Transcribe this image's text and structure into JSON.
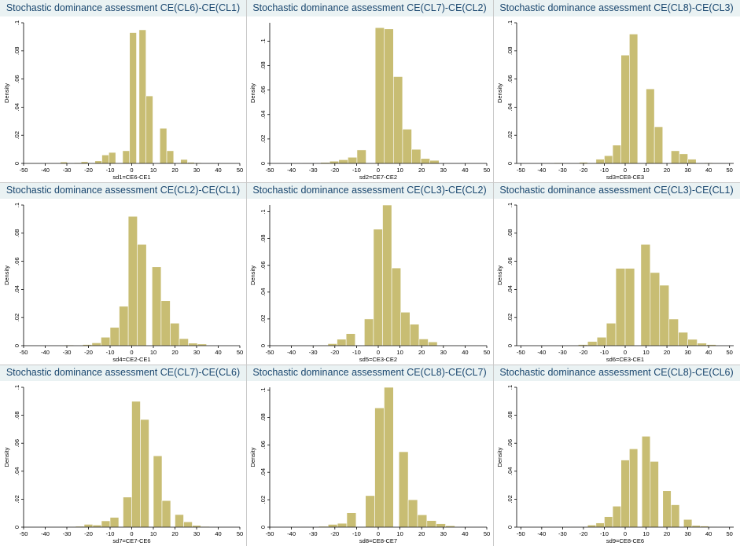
{
  "colors": {
    "bar": "#c8bd73",
    "title_band": "#eaf2f3",
    "title_text": "#1a476f"
  },
  "chart_data": [
    {
      "type": "bar",
      "title": "Stochastic dominance assessment CE(CL6)-CE(CL1)",
      "xlabel": "sd1=CE6-CE1",
      "ylabel": "Density",
      "xticks": [
        "-50",
        "-40",
        "-30",
        "-20",
        "-10",
        "0",
        "10",
        "20",
        "30",
        "40",
        "50"
      ],
      "yticks": [
        "0",
        ".02",
        ".04",
        ".06",
        ".08",
        ".1"
      ],
      "xlim": [
        -50,
        50
      ],
      "ylim": [
        0,
        0.1
      ],
      "bin_width": 3.2,
      "bins": [
        [
          -49,
          0.0002
        ],
        [
          -45.8,
          0.0002
        ],
        [
          -42.6,
          0
        ],
        [
          -39.4,
          0.0002
        ],
        [
          -36.2,
          0
        ],
        [
          -33,
          0.001
        ],
        [
          -29.8,
          0
        ],
        [
          -26.6,
          0.0005
        ],
        [
          -23.4,
          0.0012
        ],
        [
          -20.2,
          0
        ],
        [
          -17,
          0.0018
        ],
        [
          -13.8,
          0.006
        ],
        [
          -10.6,
          0.0078
        ],
        [
          -7.4,
          0
        ],
        [
          -4.2,
          0.009
        ],
        [
          -1,
          0.093
        ],
        [
          2.2,
          0
        ],
        [
          3.4,
          0.095
        ],
        [
          6.6,
          0.048
        ],
        [
          9.8,
          0
        ],
        [
          13,
          0.025
        ],
        [
          16.2,
          0.009
        ],
        [
          19.4,
          0
        ],
        [
          22.6,
          0.0028
        ],
        [
          25.8,
          0.0008
        ],
        [
          29,
          0.0005
        ],
        [
          32.2,
          0
        ],
        [
          35.4,
          0.0003
        ],
        [
          38.6,
          0
        ],
        [
          41.8,
          0.0002
        ],
        [
          45,
          0
        ]
      ]
    },
    {
      "type": "bar",
      "title": "Stochastic dominance assessment CE(CL7)-CE(CL2)",
      "xlabel": "sd2=CE7-CE2",
      "ylabel": "Density",
      "xticks": [
        "-50",
        "-40",
        "-30",
        "-20",
        "-10",
        "0",
        "10",
        "20",
        "30",
        "40",
        "50"
      ],
      "yticks": [
        "0",
        ".02",
        ".04",
        ".06",
        ".08",
        ".1"
      ],
      "xlim": [
        -50,
        50
      ],
      "ylim": [
        0,
        0.115
      ],
      "bin_width": 4.2,
      "bins": [
        [
          -35,
          0.0005
        ],
        [
          -26.6,
          0.0008
        ],
        [
          -22.4,
          0.0018
        ],
        [
          -18.2,
          0.003
        ],
        [
          -14,
          0.005
        ],
        [
          -9.8,
          0.011
        ],
        [
          -5.6,
          0
        ],
        [
          -1.4,
          0.111
        ],
        [
          2.8,
          0.11
        ],
        [
          7,
          0.071
        ],
        [
          11.2,
          0.028
        ],
        [
          15.4,
          0.0115
        ],
        [
          19.6,
          0.004
        ],
        [
          23.8,
          0.0025
        ]
      ]
    },
    {
      "type": "bar",
      "title": "Stochastic dominance assessment CE(CL8)-CE(CL3)",
      "xlabel": "sd3=CE8-CE3",
      "ylabel": "Density",
      "xticks": [
        "-50",
        "-40",
        "-30",
        "-20",
        "-10",
        "0",
        "10",
        "20",
        "30",
        "40",
        "50"
      ],
      "yticks": [
        "0",
        ".02",
        ".04",
        ".06",
        ".08",
        ".1"
      ],
      "xlim": [
        -52,
        52
      ],
      "ylim": [
        0,
        0.1
      ],
      "bin_width": 4.0,
      "bins": [
        [
          -34,
          0.0005
        ],
        [
          -22,
          0.0008
        ],
        [
          -14,
          0.003
        ],
        [
          -10,
          0.0055
        ],
        [
          -6,
          0.013
        ],
        [
          -2,
          0.077
        ],
        [
          2,
          0.092
        ],
        [
          6,
          0
        ],
        [
          10,
          0.053
        ],
        [
          14,
          0.026
        ],
        [
          18,
          0
        ],
        [
          22,
          0.009
        ],
        [
          26,
          0.0068
        ],
        [
          30,
          0.003
        ],
        [
          38,
          0.0005
        ]
      ]
    },
    {
      "type": "bar",
      "title": "Stochastic dominance assessment CE(CL2)-CE(CL1)",
      "xlabel": "sd4=CE2-CE1",
      "ylabel": "Density",
      "xticks": [
        "-50",
        "-40",
        "-30",
        "-20",
        "-10",
        "0",
        "10",
        "20",
        "30",
        "40",
        "50"
      ],
      "yticks": [
        "0",
        ".02",
        ".04",
        ".06",
        ".08",
        ".1"
      ],
      "xlim": [
        -50,
        50
      ],
      "ylim": [
        0,
        0.1
      ],
      "bin_width": 4.2,
      "bins": [
        [
          -31,
          0.0005
        ],
        [
          -22.6,
          0.0008
        ],
        [
          -18.4,
          0.002
        ],
        [
          -14.2,
          0.006
        ],
        [
          -10,
          0.013
        ],
        [
          -5.8,
          0.028
        ],
        [
          -1.6,
          0.092
        ],
        [
          2.6,
          0.072
        ],
        [
          6.8,
          0
        ],
        [
          9.4,
          0.056
        ],
        [
          13.6,
          0.032
        ],
        [
          17.8,
          0.016
        ],
        [
          22,
          0.005
        ],
        [
          26.2,
          0.0018
        ],
        [
          30.4,
          0.0012
        ]
      ]
    },
    {
      "type": "bar",
      "title": "Stochastic dominance assessment CE(CL3)-CE(CL2)",
      "xlabel": "sd5=CE3-CE2",
      "ylabel": "Density",
      "xticks": [
        "-50",
        "-40",
        "-30",
        "-20",
        "-10",
        "0",
        "10",
        "20",
        "30",
        "40",
        "50"
      ],
      "yticks": [
        "0",
        ".02",
        ".04",
        ".06",
        ".08",
        ".1"
      ],
      "xlim": [
        -50,
        50
      ],
      "ylim": [
        0,
        0.105
      ],
      "bin_width": 4.2,
      "bins": [
        [
          -40,
          0.0003
        ],
        [
          -27.4,
          0.0004
        ],
        [
          -23.2,
          0.0015
        ],
        [
          -19,
          0.0048
        ],
        [
          -14.8,
          0.009
        ],
        [
          -10.6,
          0
        ],
        [
          -6.4,
          0.02
        ],
        [
          -2.2,
          0.087
        ],
        [
          2,
          0.105
        ],
        [
          6.2,
          0.058
        ],
        [
          10.4,
          0.025
        ],
        [
          14.6,
          0.016
        ],
        [
          18.8,
          0.005
        ],
        [
          23,
          0.0028
        ],
        [
          27.2,
          0.0004
        ],
        [
          35.6,
          0.0003
        ]
      ]
    },
    {
      "type": "bar",
      "title": "Stochastic dominance assessment CE(CL3)-CE(CL1)",
      "xlabel": "sd6=CE3-CE1",
      "ylabel": "Density",
      "xticks": [
        "-50",
        "-40",
        "-30",
        "-20",
        "-10",
        "0",
        "10",
        "20",
        "30",
        "40",
        "50"
      ],
      "yticks": [
        "0",
        ".02",
        ".04",
        ".06",
        ".08",
        ".1"
      ],
      "xlim": [
        -52,
        52
      ],
      "ylim": [
        0,
        0.1
      ],
      "bin_width": 4.5,
      "bins": [
        [
          -22.5,
          0.0008
        ],
        [
          -18,
          0.003
        ],
        [
          -13.5,
          0.006
        ],
        [
          -9,
          0.016
        ],
        [
          -4.5,
          0.055
        ],
        [
          0,
          0.055
        ],
        [
          4.5,
          0
        ],
        [
          7.5,
          0.072
        ],
        [
          12,
          0.052
        ],
        [
          16.5,
          0.043
        ],
        [
          21,
          0.019
        ],
        [
          25.5,
          0.0095
        ],
        [
          30,
          0.0045
        ],
        [
          34.5,
          0.0018
        ],
        [
          39,
          0.0008
        ]
      ]
    },
    {
      "type": "bar",
      "title": "Stochastic dominance assessment CE(CL7)-CE(CL6)",
      "xlabel": "sd7=CE7-CE6",
      "ylabel": "Density",
      "xticks": [
        "-50",
        "-40",
        "-30",
        "-20",
        "-10",
        "0",
        "10",
        "20",
        "30",
        "40",
        "50"
      ],
      "yticks": [
        "0",
        ".02",
        ".04",
        ".06",
        ".08",
        ".1"
      ],
      "xlim": [
        -50,
        50
      ],
      "ylim": [
        0,
        0.1
      ],
      "bin_width": 4.0,
      "bins": [
        [
          -30,
          0.0004
        ],
        [
          -26,
          0.0006
        ],
        [
          -22,
          0.002
        ],
        [
          -18,
          0.0015
        ],
        [
          -14,
          0.0045
        ],
        [
          -10,
          0.007
        ],
        [
          -6,
          0
        ],
        [
          -4,
          0.0215
        ],
        [
          0,
          0.09
        ],
        [
          4,
          0.077
        ],
        [
          8,
          0
        ],
        [
          10,
          0.051
        ],
        [
          14,
          0.019
        ],
        [
          18,
          0
        ],
        [
          20,
          0.009
        ],
        [
          24,
          0.0038
        ],
        [
          28,
          0.0012
        ],
        [
          32,
          0.0005
        ]
      ]
    },
    {
      "type": "bar",
      "title": "Stochastic dominance assessment CE(CL8)-CE(CL7)",
      "xlabel": "sd8=CE8-CE7",
      "ylabel": "Density",
      "xticks": [
        "-50",
        "-40",
        "-30",
        "-20",
        "-10",
        "0",
        "10",
        "20",
        "30",
        "40",
        "50"
      ],
      "yticks": [
        "0",
        ".02",
        ".04",
        ".06",
        ".08",
        ".1"
      ],
      "xlim": [
        -50,
        50
      ],
      "ylim": [
        0,
        0.102
      ],
      "bin_width": 4.3,
      "bins": [
        [
          -36,
          0.0004
        ],
        [
          -27.4,
          0.0006
        ],
        [
          -23.1,
          0.002
        ],
        [
          -18.8,
          0.0028
        ],
        [
          -14.5,
          0.0105
        ],
        [
          -10.2,
          0
        ],
        [
          -5.9,
          0.023
        ],
        [
          -1.6,
          0.087
        ],
        [
          2.7,
          0.102
        ],
        [
          7,
          0
        ],
        [
          9.5,
          0.055
        ],
        [
          13.8,
          0.02
        ],
        [
          18.1,
          0.009
        ],
        [
          22.4,
          0.0048
        ],
        [
          26.7,
          0.0025
        ],
        [
          31,
          0.001
        ]
      ]
    },
    {
      "type": "bar",
      "title": "Stochastic dominance assessment CE(CL8)-CE(CL6)",
      "xlabel": "sd9=CE8-CE6",
      "ylabel": "Density",
      "xticks": [
        "-50",
        "-40",
        "-30",
        "-20",
        "-10",
        "0",
        "10",
        "20",
        "30",
        "40",
        "50"
      ],
      "yticks": [
        "0",
        ".02",
        ".04",
        ".06",
        ".08",
        ".1"
      ],
      "xlim": [
        -52,
        52
      ],
      "ylim": [
        0,
        0.1
      ],
      "bin_width": 4.0,
      "bins": [
        [
          -26,
          0.0003
        ],
        [
          -18,
          0.0015
        ],
        [
          -14,
          0.003
        ],
        [
          -10,
          0.0075
        ],
        [
          -6,
          0.015
        ],
        [
          -2,
          0.048
        ],
        [
          2,
          0.056
        ],
        [
          6,
          0
        ],
        [
          8,
          0.065
        ],
        [
          12,
          0.047
        ],
        [
          16,
          0
        ],
        [
          18,
          0.026
        ],
        [
          22,
          0.016
        ],
        [
          26,
          0
        ],
        [
          28,
          0.0055
        ],
        [
          32,
          0.0012
        ],
        [
          36,
          0.0008
        ],
        [
          40,
          0.0003
        ]
      ]
    }
  ]
}
